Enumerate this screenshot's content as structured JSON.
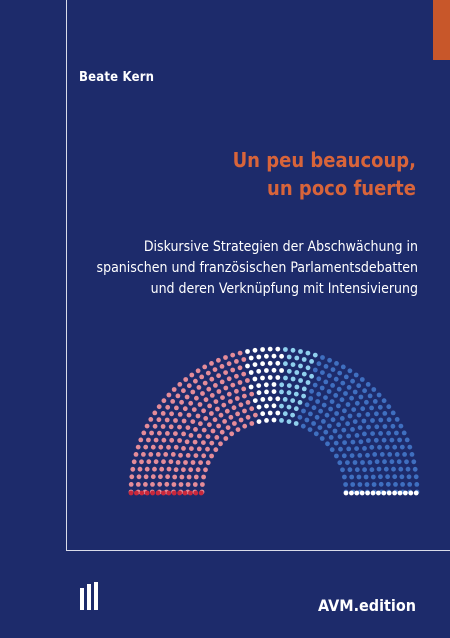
{
  "author": "Beate Kern",
  "title": {
    "line1": "Un peu beaucoup,",
    "line2": "un poco fuerte"
  },
  "subtitle": {
    "line1": "Diskursive Strategien der Abschwächung in",
    "line2": "spanischen und französischen Parlamentsdebatten",
    "line3": "und deren Verknüpfung mit Intensivierung"
  },
  "publisher": "AVM.edition",
  "colors": {
    "background": "#1d2b6b",
    "accent": "#c8572a",
    "title": "#d8643a",
    "seat_pink": "#e58c99",
    "seat_red": "#c8283c",
    "seat_white": "#ffffff",
    "seat_lightblue": "#8fd0ee",
    "seat_blue": "#3f6fc0"
  },
  "graphic": {
    "type": "parliament-hemicycle",
    "rows": 11,
    "segments": [
      {
        "group": "pink",
        "angle_from": 0.0,
        "angle_to": 0.43
      },
      {
        "group": "white",
        "angle_from": 0.43,
        "angle_to": 0.52
      },
      {
        "group": "lightblue",
        "angle_from": 0.52,
        "angle_to": 0.6
      },
      {
        "group": "blue",
        "angle_from": 0.6,
        "angle_to": 1.0
      }
    ]
  },
  "logo_icon": "avm-bars-icon"
}
